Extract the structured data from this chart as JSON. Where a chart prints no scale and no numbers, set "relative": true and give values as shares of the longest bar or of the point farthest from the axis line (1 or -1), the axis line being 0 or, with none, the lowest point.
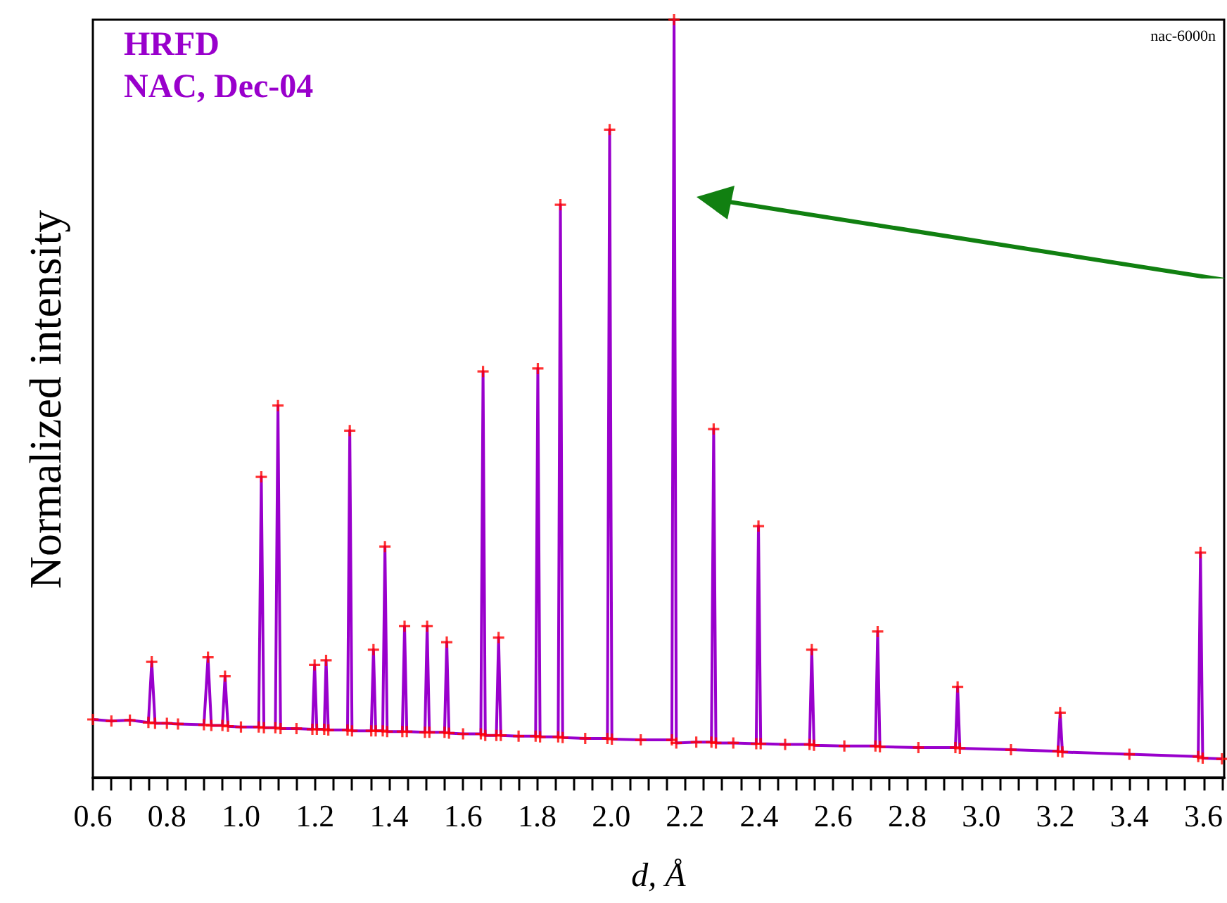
{
  "chart_data": {
    "type": "line",
    "xlabel": "d, Å",
    "ylabel": "Normalized intensity",
    "annotations": [
      "HRFD",
      "NAC, Dec-04",
      "nac-6000n"
    ],
    "relative": true,
    "grid": false,
    "xlim": [
      0.6,
      3.656
    ],
    "xticks": [
      0.6,
      {
        "value": 0.65,
        "label": null
      },
      {
        "value": 0.7,
        "label": null
      },
      {
        "value": 0.75,
        "label": null
      },
      0.8,
      {
        "value": 0.85,
        "label": null
      },
      {
        "value": 0.9,
        "label": null
      },
      {
        "value": 0.95,
        "label": null
      },
      {
        "value": 1,
        "label": "1.0"
      },
      {
        "value": 1.05,
        "label": null
      },
      {
        "value": 1.1,
        "label": null
      },
      {
        "value": 1.15,
        "label": null
      },
      1.2,
      {
        "value": 1.25,
        "label": null
      },
      {
        "value": 1.3,
        "label": null
      },
      {
        "value": 1.35,
        "label": null
      },
      1.4,
      {
        "value": 1.45,
        "label": null
      },
      {
        "value": 1.5,
        "label": null
      },
      {
        "value": 1.55,
        "label": null
      },
      1.6,
      {
        "value": 1.65,
        "label": null
      },
      {
        "value": 1.7,
        "label": null
      },
      {
        "value": 1.75,
        "label": null
      },
      1.8,
      {
        "value": 1.85,
        "label": null
      },
      {
        "value": 1.9,
        "label": null
      },
      {
        "value": 1.95,
        "label": null
      },
      {
        "value": 2,
        "label": "2.0"
      },
      {
        "value": 2.05,
        "label": null
      },
      {
        "value": 2.1,
        "label": null
      },
      {
        "value": 2.15,
        "label": null
      },
      2.2,
      {
        "value": 2.25,
        "label": null
      },
      {
        "value": 2.3,
        "label": null
      },
      {
        "value": 2.35,
        "label": null
      },
      2.4,
      {
        "value": 2.45,
        "label": null
      },
      {
        "value": 2.5,
        "label": null
      },
      {
        "value": 2.55,
        "label": null
      },
      2.6,
      {
        "value": 2.65,
        "label": null
      },
      {
        "value": 2.7,
        "label": null
      },
      {
        "value": 2.75,
        "label": null
      },
      2.8,
      {
        "value": 2.85,
        "label": null
      },
      {
        "value": 2.9,
        "label": null
      },
      {
        "value": 2.95,
        "label": null
      },
      {
        "value": 3,
        "label": "3.0"
      },
      {
        "value": 3.05,
        "label": null
      },
      {
        "value": 3.1,
        "label": null
      },
      {
        "value": 3.15,
        "label": null
      },
      3.2,
      {
        "value": 3.25,
        "label": null
      },
      {
        "value": 3.3,
        "label": null
      },
      {
        "value": 3.35,
        "label": null
      },
      3.4,
      {
        "value": 3.45,
        "label": null
      },
      {
        "value": 3.5,
        "label": null
      },
      {
        "value": 3.55,
        "label": null
      },
      3.6,
      {
        "value": 3.65,
        "label": null
      }
    ],
    "x": [
      0.6,
      0.65,
      0.7,
      0.75,
      0.759,
      0.768,
      0.8,
      0.83,
      0.9,
      0.911,
      0.92,
      0.95,
      0.957,
      0.965,
      1.0,
      1.048,
      1.055,
      1.062,
      1.093,
      1.1,
      1.107,
      1.15,
      1.193,
      1.199,
      1.205,
      1.225,
      1.23,
      1.236,
      1.288,
      1.294,
      1.3,
      1.352,
      1.358,
      1.364,
      1.383,
      1.389,
      1.395,
      1.436,
      1.442,
      1.448,
      1.497,
      1.503,
      1.509,
      1.55,
      1.556,
      1.562,
      1.6,
      1.648,
      1.654,
      1.66,
      1.69,
      1.696,
      1.702,
      1.75,
      1.796,
      1.802,
      1.808,
      1.857,
      1.863,
      1.869,
      1.93,
      1.99,
      1.996,
      2.002,
      2.08,
      2.164,
      2.17,
      2.176,
      2.23,
      2.271,
      2.277,
      2.283,
      2.33,
      2.392,
      2.398,
      2.404,
      2.47,
      2.536,
      2.542,
      2.548,
      2.63,
      2.714,
      2.72,
      2.726,
      2.83,
      2.93,
      2.936,
      2.942,
      3.08,
      3.207,
      3.213,
      3.219,
      3.4,
      3.586,
      3.592,
      3.598,
      3.65
    ],
    "series": [
      {
        "color": "#9900cc",
        "marker": "none",
        "values": [
          0.077,
          0.075,
          0.076,
          0.073,
          0.153,
          0.072,
          0.072,
          0.071,
          0.07,
          0.159,
          0.069,
          0.069,
          0.134,
          0.068,
          0.067,
          0.067,
          0.397,
          0.066,
          0.066,
          0.491,
          0.065,
          0.065,
          0.064,
          0.149,
          0.064,
          0.064,
          0.155,
          0.063,
          0.063,
          0.458,
          0.062,
          0.062,
          0.169,
          0.062,
          0.062,
          0.305,
          0.061,
          0.061,
          0.2,
          0.061,
          0.06,
          0.2,
          0.06,
          0.06,
          0.179,
          0.059,
          0.058,
          0.058,
          0.536,
          0.056,
          0.056,
          0.185,
          0.056,
          0.055,
          0.055,
          0.54,
          0.054,
          0.054,
          0.756,
          0.053,
          0.052,
          0.052,
          0.855,
          0.051,
          0.05,
          0.05,
          1.0,
          0.046,
          0.047,
          0.047,
          0.46,
          0.046,
          0.046,
          0.045,
          0.332,
          0.045,
          0.044,
          0.044,
          0.169,
          0.043,
          0.042,
          0.042,
          0.193,
          0.041,
          0.04,
          0.04,
          0.12,
          0.039,
          0.037,
          0.035,
          0.086,
          0.034,
          0.031,
          0.028,
          0.297,
          0.026,
          0.025
        ]
      },
      {
        "type": "scatter",
        "color": "#ff0000",
        "marker": "cross",
        "values": [
          0.077,
          0.075,
          0.076,
          0.073,
          0.153,
          0.072,
          0.072,
          0.071,
          0.07,
          0.159,
          0.069,
          0.069,
          0.134,
          0.068,
          0.067,
          0.067,
          0.397,
          0.066,
          0.066,
          0.491,
          0.065,
          0.065,
          0.064,
          0.149,
          0.064,
          0.064,
          0.155,
          0.063,
          0.063,
          0.458,
          0.062,
          0.062,
          0.169,
          0.062,
          0.062,
          0.305,
          0.061,
          0.061,
          0.2,
          0.061,
          0.06,
          0.2,
          0.06,
          0.06,
          0.179,
          0.059,
          0.058,
          0.058,
          0.536,
          0.056,
          0.056,
          0.185,
          0.056,
          0.055,
          0.055,
          0.54,
          0.054,
          0.054,
          0.756,
          0.053,
          0.052,
          0.052,
          0.855,
          0.051,
          0.05,
          0.05,
          1.0,
          0.046,
          0.047,
          0.047,
          0.46,
          0.046,
          0.046,
          0.045,
          0.332,
          0.045,
          0.044,
          0.044,
          0.169,
          0.043,
          0.042,
          0.042,
          0.193,
          0.041,
          0.04,
          0.04,
          0.12,
          0.039,
          0.037,
          0.035,
          0.086,
          0.034,
          0.031,
          0.028,
          0.297,
          0.026,
          0.025
        ]
      }
    ]
  }
}
